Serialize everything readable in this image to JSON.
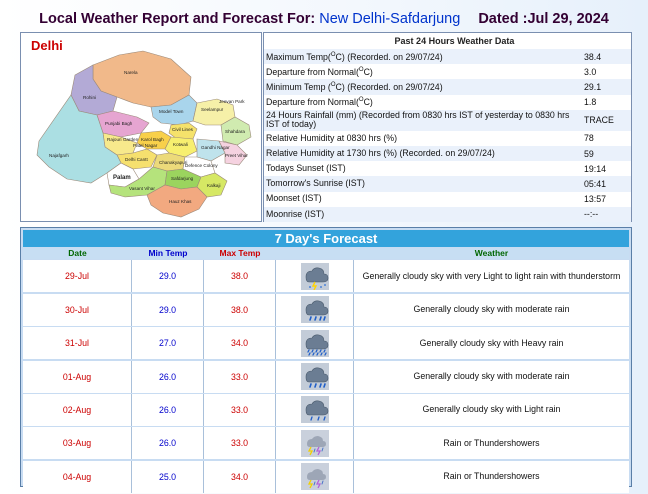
{
  "header": {
    "prefix": "Local Weather Report and Forecast For:",
    "location": "New Delhi-Safdarjung",
    "dated": "Dated :Jul 29, 2024"
  },
  "map": {
    "title": "Delhi",
    "districts": [
      "Narela",
      "Rohini",
      "Model Town",
      "Civil Lines",
      "Seelampur",
      "Shahdara",
      "Jeevan Park",
      "Punjabi Bagh",
      "Karol Bagh",
      "Patel Nagar",
      "Kotwali",
      "Rajouri Garden",
      "Gandhi Nagar",
      "Preet Vihar",
      "Delhi Cantt",
      "Najafgarh",
      "Palam",
      "Vasant Vihar",
      "Chanakyapuri",
      "Defence Colony",
      "Safdarjung",
      "Kalkaji",
      "Hauz Khas"
    ]
  },
  "past24": {
    "title": "Past 24 Hours Weather Data",
    "rows": [
      {
        "label_pre": "Maximum Temp(",
        "sup": "O",
        "label_post": "C) (Recorded. on 29/07/24)",
        "value": "38.4"
      },
      {
        "label_pre": "Departure from Normal(",
        "sup": "O",
        "label_post": "C)",
        "value": "3.0"
      },
      {
        "label_pre": "Minimum Temp (",
        "sup": "O",
        "label_post": "C) (Recorded. on 29/07/24)",
        "value": "29.1"
      },
      {
        "label_pre": "Departure from Normal(",
        "sup": "O",
        "label_post": "C)",
        "value": "1.8"
      },
      {
        "label_pre": "24 Hours Rainfall (mm) (Recorded from 0830 hrs IST of yesterday to 0830 hrs IST of today)",
        "sup": "",
        "label_post": "",
        "value": "TRACE"
      },
      {
        "label_pre": "Relative Humidity at 0830 hrs (%)",
        "sup": "",
        "label_post": "",
        "value": "78"
      },
      {
        "label_pre": "Relative Humidity at 1730 hrs (%) (Recorded. on 29/07/24)",
        "sup": "",
        "label_post": "",
        "value": "59"
      },
      {
        "label_pre": "Todays Sunset (IST)",
        "sup": "",
        "label_post": "",
        "value": "19:14"
      },
      {
        "label_pre": "Tomorrow's Sunrise (IST)",
        "sup": "",
        "label_post": "",
        "value": "05:41"
      },
      {
        "label_pre": "Moonset (IST)",
        "sup": "",
        "label_post": "",
        "value": "13:57"
      },
      {
        "label_pre": "Moonrise (IST)",
        "sup": "",
        "label_post": "",
        "value": "--:--"
      }
    ]
  },
  "forecast": {
    "title": "7 Day's Forecast",
    "headers": {
      "date": "Date",
      "min": "Min Temp",
      "max": "Max Temp",
      "weather": "Weather"
    },
    "rows": [
      {
        "date": "29-Jul",
        "min": "29.0",
        "max": "38.0",
        "icon": "cloud-light-rain-thunder-icon",
        "weather": "Generally cloudy sky with very Light to light rain with thunderstorm"
      },
      {
        "date": "30-Jul",
        "min": "29.0",
        "max": "38.0",
        "icon": "cloud-moderate-rain-icon",
        "weather": "Generally cloudy sky with moderate rain"
      },
      {
        "date": "31-Jul",
        "min": "27.0",
        "max": "34.0",
        "icon": "cloud-heavy-rain-icon",
        "weather": "Generally cloudy sky with Heavy rain"
      },
      {
        "date": "01-Aug",
        "min": "26.0",
        "max": "33.0",
        "icon": "cloud-moderate-rain-icon",
        "weather": "Generally cloudy sky with moderate rain"
      },
      {
        "date": "02-Aug",
        "min": "26.0",
        "max": "33.0",
        "icon": "cloud-light-rain-icon",
        "weather": "Generally cloudy sky with Light rain"
      },
      {
        "date": "03-Aug",
        "min": "26.0",
        "max": "33.0",
        "icon": "thundershower-icon",
        "weather": "Rain or Thundershowers"
      },
      {
        "date": "04-Aug",
        "min": "25.0",
        "max": "34.0",
        "icon": "thundershower-icon",
        "weather": "Rain or Thundershowers"
      }
    ]
  }
}
